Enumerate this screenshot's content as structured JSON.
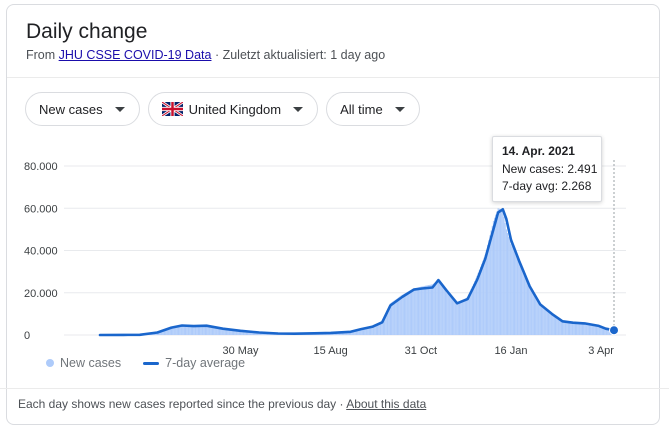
{
  "header": {
    "title": "Daily change",
    "source_prefix": "From ",
    "source_link": "JHU CSSE COVID-19 Data",
    "updated": " · Zuletzt aktualisiert: 1 day ago"
  },
  "filters": {
    "metric": "New cases",
    "region": "United Kingdom",
    "period": "All time"
  },
  "tooltip": {
    "date": "14. Apr. 2021",
    "new_cases_label": "New cases: ",
    "new_cases_value": "2.491",
    "avg_label": "7-day avg: ",
    "avg_value": "2.268"
  },
  "legend": {
    "new_cases": "New cases",
    "avg": "7-day average"
  },
  "footer": {
    "note": "Each day shows new cases reported since the previous day · ",
    "about": "About this data"
  },
  "colors": {
    "bars": "#aecbfa",
    "avg_line": "#1a66cc",
    "grid": "#e8eaed"
  },
  "chart_data": {
    "type": "bar",
    "x_type": "date",
    "x_range": [
      "2020-01-31",
      "2021-04-14"
    ],
    "ylim": [
      0,
      80000
    ],
    "yticks": [
      0,
      20000,
      40000,
      60000,
      80000
    ],
    "ytick_labels": [
      "0",
      "20.000",
      "40.000",
      "60.000",
      "80.000"
    ],
    "xticks": [
      "2020-05-30",
      "2020-08-15",
      "2020-10-31",
      "2021-01-16",
      "2021-04-03"
    ],
    "xtick_labels": [
      "30 May",
      "15 Aug",
      "31 Oct",
      "16 Jan",
      "3 Apr"
    ],
    "grid": true,
    "legend": "bottom-left",
    "series": [
      {
        "name": "New cases",
        "type": "bar",
        "points": [
          [
            "2020-01-31",
            0
          ],
          [
            "2020-02-20",
            50
          ],
          [
            "2020-03-05",
            100
          ],
          [
            "2020-03-20",
            1500
          ],
          [
            "2020-04-01",
            4000
          ],
          [
            "2020-04-10",
            4500
          ],
          [
            "2020-04-20",
            4400
          ],
          [
            "2020-05-01",
            4200
          ],
          [
            "2020-05-15",
            3200
          ],
          [
            "2020-05-30",
            2000
          ],
          [
            "2020-06-15",
            1200
          ],
          [
            "2020-07-01",
            800
          ],
          [
            "2020-07-15",
            600
          ],
          [
            "2020-08-01",
            800
          ],
          [
            "2020-08-15",
            1000
          ],
          [
            "2020-09-01",
            1500
          ],
          [
            "2020-09-10",
            3000
          ],
          [
            "2020-09-20",
            4500
          ],
          [
            "2020-09-28",
            6500
          ],
          [
            "2020-10-05",
            15000
          ],
          [
            "2020-10-15",
            19000
          ],
          [
            "2020-10-25",
            22000
          ],
          [
            "2020-11-01",
            23000
          ],
          [
            "2020-11-10",
            24000
          ],
          [
            "2020-11-15",
            26000
          ],
          [
            "2020-11-22",
            20000
          ],
          [
            "2020-12-01",
            15000
          ],
          [
            "2020-12-10",
            18000
          ],
          [
            "2020-12-18",
            28000
          ],
          [
            "2020-12-25",
            38000
          ],
          [
            "2021-01-01",
            54000
          ],
          [
            "2021-01-05",
            60000
          ],
          [
            "2021-01-09",
            59000
          ],
          [
            "2021-01-12",
            50000
          ],
          [
            "2021-01-16",
            43000
          ],
          [
            "2021-01-23",
            36000
          ],
          [
            "2021-02-01",
            24000
          ],
          [
            "2021-02-10",
            15000
          ],
          [
            "2021-02-20",
            10500
          ],
          [
            "2021-03-01",
            7000
          ],
          [
            "2021-03-10",
            6000
          ],
          [
            "2021-03-20",
            5500
          ],
          [
            "2021-04-01",
            4200
          ],
          [
            "2021-04-07",
            2800
          ],
          [
            "2021-04-14",
            2491
          ]
        ]
      },
      {
        "name": "7-day average",
        "type": "line",
        "points": [
          [
            "2020-01-31",
            0
          ],
          [
            "2020-02-20",
            50
          ],
          [
            "2020-03-05",
            100
          ],
          [
            "2020-03-20",
            1200
          ],
          [
            "2020-04-01",
            3500
          ],
          [
            "2020-04-10",
            4500
          ],
          [
            "2020-04-20",
            4200
          ],
          [
            "2020-05-01",
            4400
          ],
          [
            "2020-05-15",
            3000
          ],
          [
            "2020-05-30",
            2000
          ],
          [
            "2020-06-15",
            1200
          ],
          [
            "2020-07-01",
            700
          ],
          [
            "2020-07-15",
            600
          ],
          [
            "2020-08-01",
            800
          ],
          [
            "2020-08-15",
            1000
          ],
          [
            "2020-09-01",
            1500
          ],
          [
            "2020-09-10",
            2800
          ],
          [
            "2020-09-20",
            4000
          ],
          [
            "2020-09-28",
            6000
          ],
          [
            "2020-10-05",
            14000
          ],
          [
            "2020-10-15",
            18000
          ],
          [
            "2020-10-25",
            21500
          ],
          [
            "2020-11-01",
            22000
          ],
          [
            "2020-11-10",
            22500
          ],
          [
            "2020-11-15",
            26000
          ],
          [
            "2020-11-22",
            21000
          ],
          [
            "2020-12-01",
            15000
          ],
          [
            "2020-12-10",
            17000
          ],
          [
            "2020-12-18",
            26000
          ],
          [
            "2020-12-25",
            36000
          ],
          [
            "2021-01-01",
            50000
          ],
          [
            "2021-01-05",
            58000
          ],
          [
            "2021-01-09",
            59500
          ],
          [
            "2021-01-12",
            55000
          ],
          [
            "2021-01-16",
            45000
          ],
          [
            "2021-01-23",
            35000
          ],
          [
            "2021-02-01",
            23000
          ],
          [
            "2021-02-10",
            14500
          ],
          [
            "2021-02-20",
            10000
          ],
          [
            "2021-03-01",
            6500
          ],
          [
            "2021-03-10",
            5800
          ],
          [
            "2021-03-20",
            5500
          ],
          [
            "2021-04-01",
            4300
          ],
          [
            "2021-04-07",
            3000
          ],
          [
            "2021-04-14",
            2268
          ]
        ]
      }
    ]
  }
}
